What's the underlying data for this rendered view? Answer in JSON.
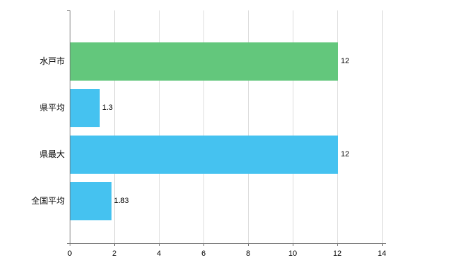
{
  "chart_data": {
    "type": "bar",
    "orientation": "horizontal",
    "title": "",
    "xlabel": "",
    "ylabel": "",
    "categories": [
      "水戸市",
      "県平均",
      "県最大",
      "全国平均"
    ],
    "values": [
      12,
      1.3,
      12,
      1.83
    ],
    "value_labels": [
      "12",
      "1.3",
      "12",
      "1.83"
    ],
    "bar_colors": [
      "#63c77c",
      "#45c2f0",
      "#45c2f0",
      "#45c2f0"
    ],
    "xlim": [
      0,
      14
    ],
    "x_ticks": [
      0,
      2,
      4,
      6,
      8,
      10,
      12,
      14
    ],
    "x_tick_labels": [
      "0",
      "2",
      "4",
      "6",
      "8",
      "10",
      "12",
      "14"
    ],
    "grid": true,
    "legend": "none",
    "colors": {
      "background": "#ffffff",
      "grid": "#dcdcdc",
      "axis": "#6e6e6e",
      "text": "#000000"
    }
  }
}
